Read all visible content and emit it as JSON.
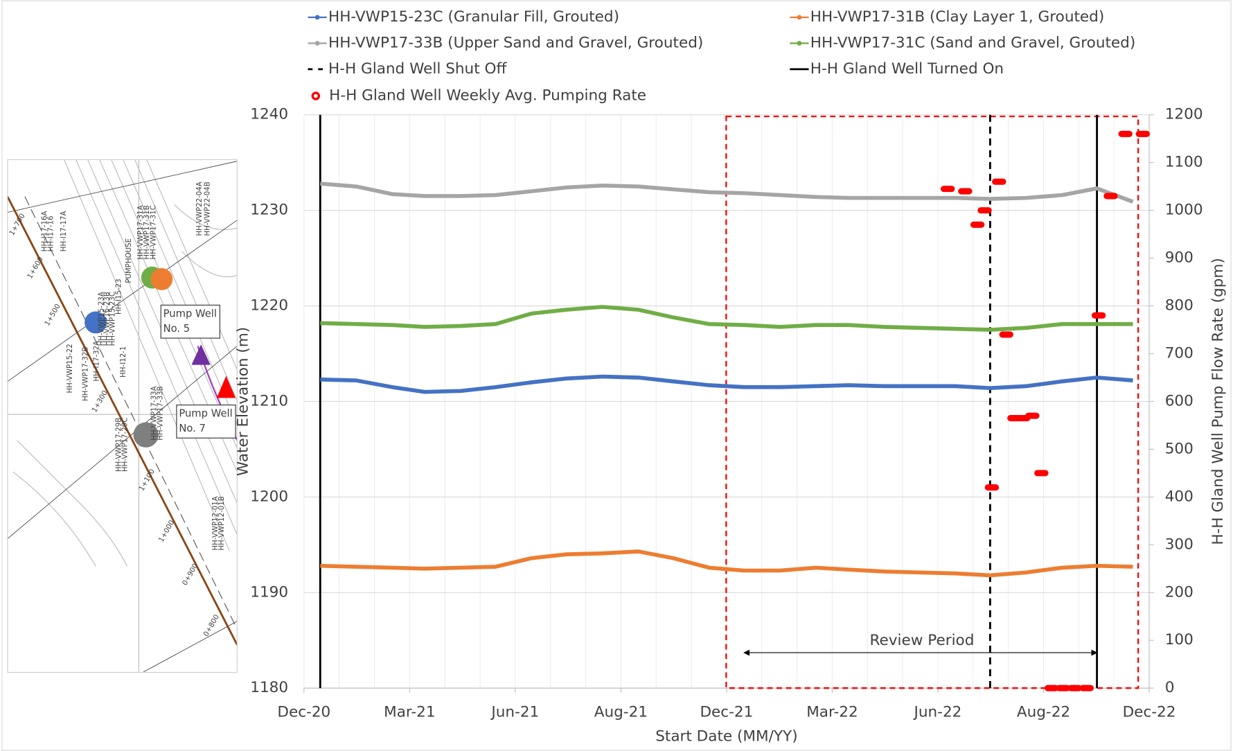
{
  "map_inset": {
    "labels": [
      "PUMPHOUSE",
      "HH-VWP15-23A",
      "HH-VWP15-23B",
      "HH-VWP15-23C",
      "HH-VWP17-31A",
      "HH-VWP17-31B",
      "HH-VWP17-31C",
      "HH-VWP17-33A",
      "HH-VWP17-33B",
      "HH-VWP15-22",
      "HH-VWP17-32B",
      "HH-VWP17-29B",
      "HH-VWP17-29C",
      "HH-VWP22-04A",
      "HH-VWP22-04B",
      "HH-VWP12-01A",
      "HH-VWP12-01B",
      "HH-I17-16A",
      "HH-I17-16",
      "HH-I17-17A",
      "HH-I17-32A",
      "HH-I15-23",
      "HH-I12-1"
    ],
    "stations": [
      "1+700",
      "1+600",
      "1+500",
      "1+300",
      "1+100",
      "1+000",
      "0+900",
      "0+800"
    ],
    "callouts": [
      {
        "line1": "Pump Well",
        "line2": "No. 5"
      },
      {
        "line1": "Pump Well",
        "line2": "No. 7"
      }
    ]
  },
  "chart_data": {
    "type": "line",
    "xlabel": "Start Date (MM/YY)",
    "ylabel": "Water Elevation (m)",
    "y2label": "H-H Gland  Well Pump Flow Rate (gpm)",
    "xlim": [
      "2020-12-01",
      "2022-11-29"
    ],
    "xticks": [
      {
        "value": "2020-12-01",
        "label": "Dec-20"
      },
      {
        "value": "2021-03-02",
        "label": "Mar-21"
      },
      {
        "value": "2021-06-01",
        "label": "Jun-21"
      },
      {
        "value": "2021-08-31",
        "label": "Aug-21"
      },
      {
        "value": "2021-11-30",
        "label": "Dec-21"
      },
      {
        "value": "2022-03-01",
        "label": "Mar-22"
      },
      {
        "value": "2022-05-31",
        "label": "Jun-22"
      },
      {
        "value": "2022-08-30",
        "label": "Aug-22"
      },
      {
        "value": "2022-11-29",
        "label": "Dec-22"
      }
    ],
    "ylim": [
      1180,
      1240
    ],
    "yticks": [
      1180,
      1190,
      1200,
      1210,
      1220,
      1230,
      1240
    ],
    "y2lim": [
      0,
      1200
    ],
    "y2ticks": [
      0,
      100,
      200,
      300,
      400,
      500,
      600,
      700,
      800,
      900,
      1000,
      1100,
      1200
    ],
    "grid": true,
    "x": [
      "2020-12",
      "2021-01",
      "2021-02",
      "2021-03",
      "2021-04",
      "2021-05",
      "2021-06",
      "2021-07",
      "2021-08",
      "2021-09",
      "2021-10",
      "2021-11",
      "2021-12",
      "2022-01",
      "2022-02",
      "2022-03",
      "2022-04",
      "2022-05",
      "2022-06",
      "2022-07",
      "2022-08",
      "2022-09",
      "2022-10",
      "2022-11"
    ],
    "series": [
      {
        "name": "HH-VWP15-23C (Granular Fill, Grouted)",
        "color": "#4472c4",
        "values": [
          1212.3,
          1212.2,
          1211.5,
          1211.0,
          1211.1,
          1211.5,
          1212.0,
          1212.4,
          1212.6,
          1212.5,
          1212.1,
          1211.7,
          1211.5,
          1211.5,
          1211.6,
          1211.7,
          1211.6,
          1211.6,
          1211.6,
          1211.4,
          1211.6,
          1212.1,
          1212.5,
          1212.2
        ]
      },
      {
        "name": "HH-VWP17-31B (Clay Layer 1, Grouted)",
        "color": "#ed7d31",
        "values": [
          1192.8,
          1192.7,
          1192.6,
          1192.5,
          1192.6,
          1192.7,
          1193.6,
          1194.0,
          1194.1,
          1194.3,
          1193.6,
          1192.6,
          1192.3,
          1192.3,
          1192.6,
          1192.4,
          1192.2,
          1192.1,
          1192.0,
          1191.8,
          1192.1,
          1192.6,
          1192.8,
          1192.7
        ]
      },
      {
        "name": "HH-VWP17-33B (Upper Sand and Gravel, Grouted)",
        "color": "#a5a5a5",
        "values": [
          1232.8,
          1232.5,
          1231.7,
          1231.5,
          1231.5,
          1231.6,
          1232.0,
          1232.4,
          1232.6,
          1232.5,
          1232.2,
          1231.9,
          1231.8,
          1231.6,
          1231.4,
          1231.3,
          1231.3,
          1231.3,
          1231.3,
          1231.2,
          1231.3,
          1231.6,
          1232.3,
          1230.9
        ]
      },
      {
        "name": "HH-VWP17-31C (Sand and Gravel, Grouted)",
        "color": "#70ad47",
        "values": [
          1218.2,
          1218.1,
          1218.0,
          1217.8,
          1217.9,
          1218.1,
          1219.2,
          1219.6,
          1219.9,
          1219.6,
          1218.8,
          1218.1,
          1218.0,
          1217.8,
          1218.0,
          1218.0,
          1217.8,
          1217.7,
          1217.6,
          1217.5,
          1217.7,
          1218.1,
          1218.1,
          1218.1
        ]
      }
    ],
    "events": [
      {
        "name": "H-H Gland Well Shut Off",
        "style": "dashed",
        "x": [
          "2022-07"
        ]
      },
      {
        "name": "H-H Gland Well Turned On",
        "style": "solid",
        "x": [
          "2020-12",
          "2022-10"
        ]
      }
    ],
    "rate": {
      "name": "H-H Gland Well Weekly Avg. Pumping Rate",
      "color": "#ff0000",
      "axis": "y2",
      "x": [
        "2022-06",
        "2022-06",
        "2022-07",
        "2022-07",
        "2022-07",
        "2022-07",
        "2022-07",
        "2022-08",
        "2022-08",
        "2022-08",
        "2022-08",
        "2022-09",
        "2022-09",
        "2022-09",
        "2022-10",
        "2022-10",
        "2022-10",
        "2022-11",
        "2022-11"
      ],
      "values": [
        1045,
        1040,
        970,
        1000,
        420,
        1060,
        740,
        565,
        565,
        570,
        450,
        0,
        0,
        0,
        0,
        780,
        1030,
        1160,
        1160
      ]
    },
    "annotation": {
      "text": "Review Period",
      "start": "2021-12",
      "end": "2022-10"
    }
  }
}
